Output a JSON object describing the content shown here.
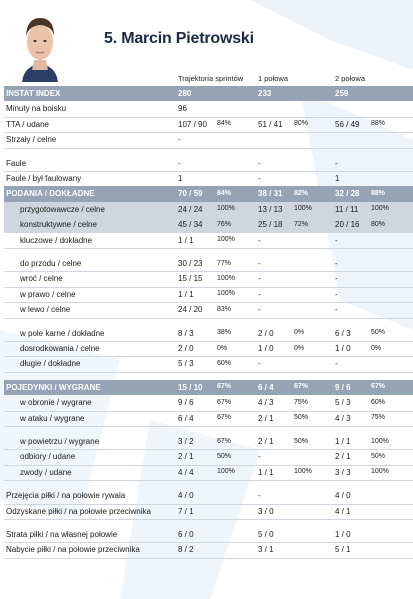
{
  "player": {
    "title": "5. Marcin Pietrowski"
  },
  "columns": [
    "Trajektoria sprintów",
    "1 połowa",
    "2 połowa"
  ],
  "rows": [
    {
      "label": "INSTAT INDEX",
      "kind": "sec",
      "c": [
        [
          "280",
          ""
        ],
        [
          "233",
          ""
        ],
        [
          "259",
          ""
        ]
      ]
    },
    {
      "label": "Minuty na boisku",
      "kind": "top",
      "c": [
        [
          "96",
          ""
        ],
        [
          "",
          ""
        ],
        [
          "",
          ""
        ]
      ]
    },
    {
      "label": "TTA / udane",
      "kind": "top",
      "c": [
        [
          "107 / 90",
          "84%"
        ],
        [
          "51 / 41",
          "80%"
        ],
        [
          "56 / 49",
          "88%"
        ]
      ]
    },
    {
      "label": "Strzały / celne",
      "kind": "top",
      "c": [
        [
          "-",
          ""
        ],
        [
          "",
          ""
        ],
        [
          "",
          ""
        ]
      ]
    },
    {
      "label": "",
      "kind": "gap",
      "c": [
        [
          "",
          ""
        ],
        [
          "",
          ""
        ],
        [
          "",
          ""
        ]
      ]
    },
    {
      "label": "Faule",
      "kind": "top",
      "c": [
        [
          "-",
          ""
        ],
        [
          "-",
          ""
        ],
        [
          "-",
          ""
        ]
      ]
    },
    {
      "label": "Faule / był faulowany",
      "kind": "top",
      "c": [
        [
          "1",
          ""
        ],
        [
          "-",
          ""
        ],
        [
          "1",
          ""
        ]
      ]
    },
    {
      "label": "PODANIA / DOKŁADNE",
      "kind": "sec",
      "c": [
        [
          "70 / 59",
          "84%"
        ],
        [
          "38 / 31",
          "82%"
        ],
        [
          "32 / 28",
          "88%"
        ]
      ]
    },
    {
      "label": "przygotowawcze / celne",
      "kind": "sub hl",
      "c": [
        [
          "24 / 24",
          "100%"
        ],
        [
          "13 / 13",
          "100%"
        ],
        [
          "11 / 11",
          "100%"
        ]
      ]
    },
    {
      "label": "konstruktywne / celne",
      "kind": "sub hl",
      "c": [
        [
          "45 / 34",
          "76%"
        ],
        [
          "25 / 18",
          "72%"
        ],
        [
          "20 / 16",
          "80%"
        ]
      ]
    },
    {
      "label": "kluczowe / dokładne",
      "kind": "sub",
      "c": [
        [
          "1 / 1",
          "100%"
        ],
        [
          "-",
          ""
        ],
        [
          "-",
          ""
        ]
      ]
    },
    {
      "label": "",
      "kind": "gap",
      "c": [
        [
          "",
          ""
        ],
        [
          "",
          ""
        ],
        [
          "",
          ""
        ]
      ]
    },
    {
      "label": "do przodu / celne",
      "kind": "sub",
      "c": [
        [
          "30 / 23",
          "77%"
        ],
        [
          "-",
          ""
        ],
        [
          "-",
          ""
        ]
      ]
    },
    {
      "label": "wroć / celne",
      "kind": "sub",
      "c": [
        [
          "15 / 15",
          "100%"
        ],
        [
          "-",
          ""
        ],
        [
          "-",
          ""
        ]
      ]
    },
    {
      "label": "w prawo / celne",
      "kind": "sub",
      "c": [
        [
          "1 / 1",
          "100%"
        ],
        [
          "-",
          ""
        ],
        [
          "-",
          ""
        ]
      ]
    },
    {
      "label": "w lewo / celne",
      "kind": "sub",
      "c": [
        [
          "24 / 20",
          "83%"
        ],
        [
          "-",
          ""
        ],
        [
          "-",
          ""
        ]
      ]
    },
    {
      "label": "",
      "kind": "gap",
      "c": [
        [
          "",
          ""
        ],
        [
          "",
          ""
        ],
        [
          "",
          ""
        ]
      ]
    },
    {
      "label": "w pole karne / dokładne",
      "kind": "sub",
      "c": [
        [
          "8 / 3",
          "38%"
        ],
        [
          "2 / 0",
          "0%"
        ],
        [
          "6 / 3",
          "50%"
        ]
      ]
    },
    {
      "label": "dosrodkowania / celne",
      "kind": "sub",
      "c": [
        [
          "2 / 0",
          "0%"
        ],
        [
          "1 / 0",
          "0%"
        ],
        [
          "1 / 0",
          "0%"
        ]
      ]
    },
    {
      "label": "długie / dokładne",
      "kind": "sub",
      "c": [
        [
          "5 / 3",
          "60%"
        ],
        [
          "-",
          ""
        ],
        [
          "-",
          ""
        ]
      ]
    },
    {
      "label": "",
      "kind": "gap",
      "c": [
        [
          "",
          ""
        ],
        [
          "",
          ""
        ],
        [
          "",
          ""
        ]
      ]
    },
    {
      "label": "POJEDYNKI / WYGRANE",
      "kind": "sec",
      "c": [
        [
          "15 / 10",
          "67%"
        ],
        [
          "6 / 4",
          "67%"
        ],
        [
          "9 / 6",
          "67%"
        ]
      ]
    },
    {
      "label": "w obronie / wygrane",
      "kind": "sub",
      "c": [
        [
          "9 / 6",
          "67%"
        ],
        [
          "4 / 3",
          "75%"
        ],
        [
          "5 / 3",
          "60%"
        ]
      ]
    },
    {
      "label": "w ataku / wygrane",
      "kind": "sub",
      "c": [
        [
          "6 / 4",
          "67%"
        ],
        [
          "2 / 1",
          "50%"
        ],
        [
          "4 / 3",
          "75%"
        ]
      ]
    },
    {
      "label": "",
      "kind": "gap",
      "c": [
        [
          "",
          ""
        ],
        [
          "",
          ""
        ],
        [
          "",
          ""
        ]
      ]
    },
    {
      "label": "w powietrzu / wygrane",
      "kind": "sub",
      "c": [
        [
          "3 / 2",
          "67%"
        ],
        [
          "2 / 1",
          "50%"
        ],
        [
          "1 / 1",
          "100%"
        ]
      ]
    },
    {
      "label": "odbiory / udane",
      "kind": "sub",
      "c": [
        [
          "2 / 1",
          "50%"
        ],
        [
          "-",
          ""
        ],
        [
          "2 / 1",
          "50%"
        ]
      ]
    },
    {
      "label": "zwody / udane",
      "kind": "sub",
      "c": [
        [
          "4 / 4",
          "100%"
        ],
        [
          "1 / 1",
          "100%"
        ],
        [
          "3 / 3",
          "100%"
        ]
      ]
    },
    {
      "label": "",
      "kind": "gap",
      "c": [
        [
          "",
          ""
        ],
        [
          "",
          ""
        ],
        [
          "",
          ""
        ]
      ]
    },
    {
      "label": "Przejęcia piłki / na połowie rywala",
      "kind": "top",
      "c": [
        [
          "4 / 0",
          ""
        ],
        [
          "-",
          ""
        ],
        [
          "4 / 0",
          ""
        ]
      ]
    },
    {
      "label": "Odzyskane piłki / na połowie przeciwnika",
      "kind": "top",
      "c": [
        [
          "7 / 1",
          ""
        ],
        [
          "3 / 0",
          ""
        ],
        [
          "4 / 1",
          ""
        ]
      ]
    },
    {
      "label": "",
      "kind": "gap",
      "c": [
        [
          "",
          ""
        ],
        [
          "",
          ""
        ],
        [
          "",
          ""
        ]
      ]
    },
    {
      "label": "Strata piłki / na własnej połowie",
      "kind": "top",
      "c": [
        [
          "6 / 0",
          ""
        ],
        [
          "5 / 0",
          ""
        ],
        [
          "1 / 0",
          ""
        ]
      ]
    },
    {
      "label": "Nabycie piłki / na połowie przeciwnika",
      "kind": "top",
      "c": [
        [
          "8 / 2",
          ""
        ],
        [
          "3 / 1",
          ""
        ],
        [
          "5 / 1",
          ""
        ]
      ]
    }
  ],
  "colors": {
    "section_bg": "#95a3b5",
    "highlight_bg": "#cfd6df",
    "title": "#1a2a44"
  }
}
